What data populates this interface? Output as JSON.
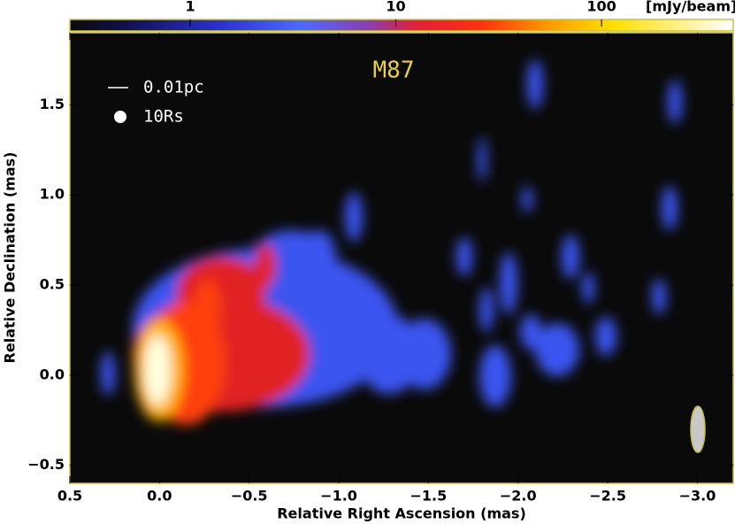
{
  "chart_data": {
    "type": "image",
    "title": "M87",
    "xlabel": "Relative Right Ascension (mas)",
    "ylabel": "Relative Declination (mas)",
    "xlim": [
      0.5,
      -3.2
    ],
    "ylim": [
      -0.6,
      1.9
    ],
    "xticks": [
      0.5,
      {
        "value": 0,
        "label": "0.0"
      },
      {
        "value": -0.5,
        "label": "−0.5"
      },
      {
        "value": -1,
        "label": "−1.0"
      },
      {
        "value": -1.5,
        "label": "−1.5"
      },
      {
        "value": -2,
        "label": "−2.0"
      },
      {
        "value": -2.5,
        "label": "−2.5"
      },
      {
        "value": -3,
        "label": "−3.0"
      }
    ],
    "yticks": [
      {
        "value": -0.5,
        "label": "−0.5"
      },
      {
        "value": 0,
        "label": "0.0"
      },
      0.5,
      {
        "value": 1,
        "label": "1.0"
      },
      1.5
    ],
    "colorbar": {
      "label": "[mJy/beam]",
      "scale": "log",
      "clim": [
        0.26,
        437
      ],
      "ticks": [
        1,
        10,
        100
      ]
    },
    "annotations": [
      "0.01pc",
      "10Rs"
    ]
  }
}
